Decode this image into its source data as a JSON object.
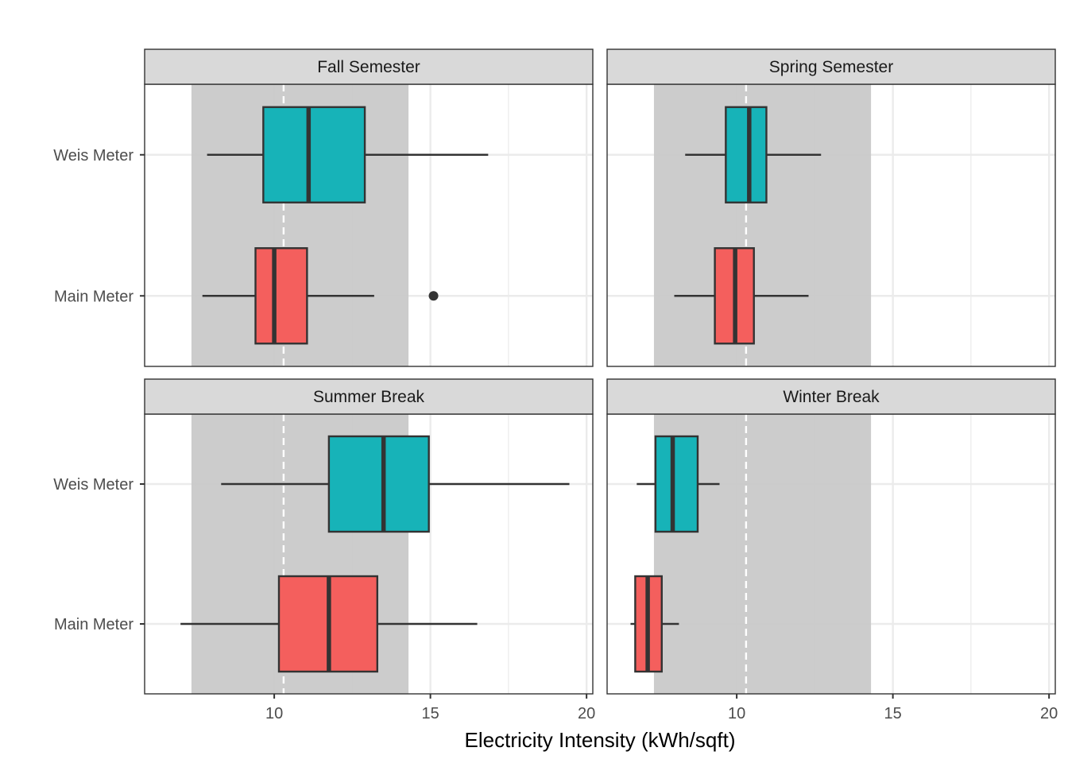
{
  "chart_data": {
    "type": "boxplot",
    "xlabel": "Electricity Intensity (kWh/sqft)",
    "ylabel": "",
    "xlim": [
      5.85,
      20.2
    ],
    "x_ticks": [
      10,
      15,
      20
    ],
    "x_tick_labels": [
      "10",
      "15",
      "20"
    ],
    "categories": [
      "Weis Meter",
      "Main Meter"
    ],
    "colors": {
      "Weis Meter": "#17b3b8",
      "Main Meter": "#f45f5d",
      "band": "#c8c8c8",
      "strip": "#d9d9d9",
      "reference_line": "#ffffff"
    },
    "reference_band": [
      7.35,
      14.3
    ],
    "reference_line": 10.3,
    "panels": [
      {
        "title": "Fall Semester",
        "boxes": [
          {
            "group": "Weis Meter",
            "whisker_low": 7.85,
            "q1": 9.65,
            "median": 11.1,
            "q3": 12.9,
            "whisker_high": 16.85,
            "outliers": []
          },
          {
            "group": "Main Meter",
            "whisker_low": 7.7,
            "q1": 9.4,
            "median": 10.0,
            "q3": 11.05,
            "whisker_high": 13.2,
            "outliers": [
              15.1
            ]
          }
        ]
      },
      {
        "title": "Spring Semester",
        "boxes": [
          {
            "group": "Weis Meter",
            "whisker_low": 8.35,
            "q1": 9.65,
            "median": 10.4,
            "q3": 10.95,
            "whisker_high": 12.7,
            "outliers": []
          },
          {
            "group": "Main Meter",
            "whisker_low": 8.0,
            "q1": 9.3,
            "median": 9.95,
            "q3": 10.55,
            "whisker_high": 12.3,
            "outliers": []
          }
        ]
      },
      {
        "title": "Summer Break",
        "boxes": [
          {
            "group": "Weis Meter",
            "whisker_low": 8.3,
            "q1": 11.75,
            "median": 13.5,
            "q3": 14.95,
            "whisker_high": 19.45,
            "outliers": []
          },
          {
            "group": "Main Meter",
            "whisker_low": 7.0,
            "q1": 10.15,
            "median": 11.75,
            "q3": 13.3,
            "whisker_high": 16.5,
            "outliers": []
          }
        ]
      },
      {
        "title": "Winter Break",
        "boxes": [
          {
            "group": "Weis Meter",
            "whisker_low": 6.8,
            "q1": 7.4,
            "median": 7.95,
            "q3": 8.75,
            "whisker_high": 9.45,
            "outliers": []
          },
          {
            "group": "Main Meter",
            "whisker_low": 6.6,
            "q1": 6.75,
            "median": 7.15,
            "q3": 7.6,
            "whisker_high": 8.15,
            "outliers": []
          }
        ]
      }
    ]
  }
}
